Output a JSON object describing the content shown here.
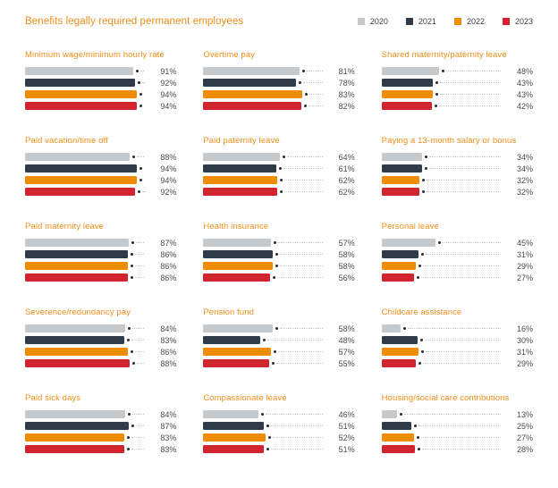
{
  "title": "Benefits legally required permanent employees",
  "colors": {
    "title_orange": "#ef8e1b",
    "value_label": "#4c4c4c",
    "leader_line": "#c6c6c6",
    "end_dot": "#2b2b2b",
    "background": "#ffffff"
  },
  "legend": [
    {
      "label": "2020",
      "color": "#c6c9cb"
    },
    {
      "label": "2021",
      "color": "#2f3b46"
    },
    {
      "label": "2022",
      "color": "#f08c00"
    },
    {
      "label": "2023",
      "color": "#d2232e"
    }
  ],
  "chart_data": {
    "type": "bar",
    "orientation": "horizontal",
    "layout": "small-multiples 3 columns x 5 rows",
    "unit": "%",
    "xlim": [
      0,
      100
    ],
    "grid": false,
    "legend_position": "top-right",
    "series_names": [
      "2020",
      "2021",
      "2022",
      "2023"
    ],
    "series_colors": [
      "#c6c9cb",
      "#2f3b46",
      "#f08c00",
      "#d2232e"
    ],
    "panels": [
      {
        "title": "Minimum wage/minimum hourly rate",
        "values": [
          91,
          92,
          94,
          94
        ]
      },
      {
        "title": "Overtime pay",
        "values": [
          81,
          78,
          83,
          82
        ]
      },
      {
        "title": "Shared maternity/paternity leave",
        "values": [
          48,
          43,
          43,
          42
        ]
      },
      {
        "title": "Paid vacation/time off",
        "values": [
          88,
          94,
          94,
          92
        ]
      },
      {
        "title": "Paid paternity leave",
        "values": [
          64,
          61,
          62,
          62
        ]
      },
      {
        "title": "Paying a 13-month salary or bonus",
        "values": [
          34,
          34,
          32,
          32
        ]
      },
      {
        "title": "Paid maternity leave",
        "values": [
          87,
          86,
          86,
          86
        ]
      },
      {
        "title": "Health insurance",
        "values": [
          57,
          58,
          58,
          56
        ]
      },
      {
        "title": "Personal leave",
        "values": [
          45,
          31,
          29,
          27
        ]
      },
      {
        "title": "Severence/redundancy pay",
        "values": [
          84,
          83,
          86,
          88
        ]
      },
      {
        "title": "Pension fund",
        "values": [
          58,
          48,
          57,
          55
        ]
      },
      {
        "title": "Childcare assistance",
        "values": [
          16,
          30,
          31,
          29
        ]
      },
      {
        "title": "Paid sick days",
        "values": [
          84,
          87,
          83,
          83
        ]
      },
      {
        "title": "Compassionate leave",
        "values": [
          46,
          51,
          52,
          51
        ]
      },
      {
        "title": "Housing/social care contributions",
        "values": [
          13,
          25,
          27,
          28
        ]
      }
    ]
  }
}
